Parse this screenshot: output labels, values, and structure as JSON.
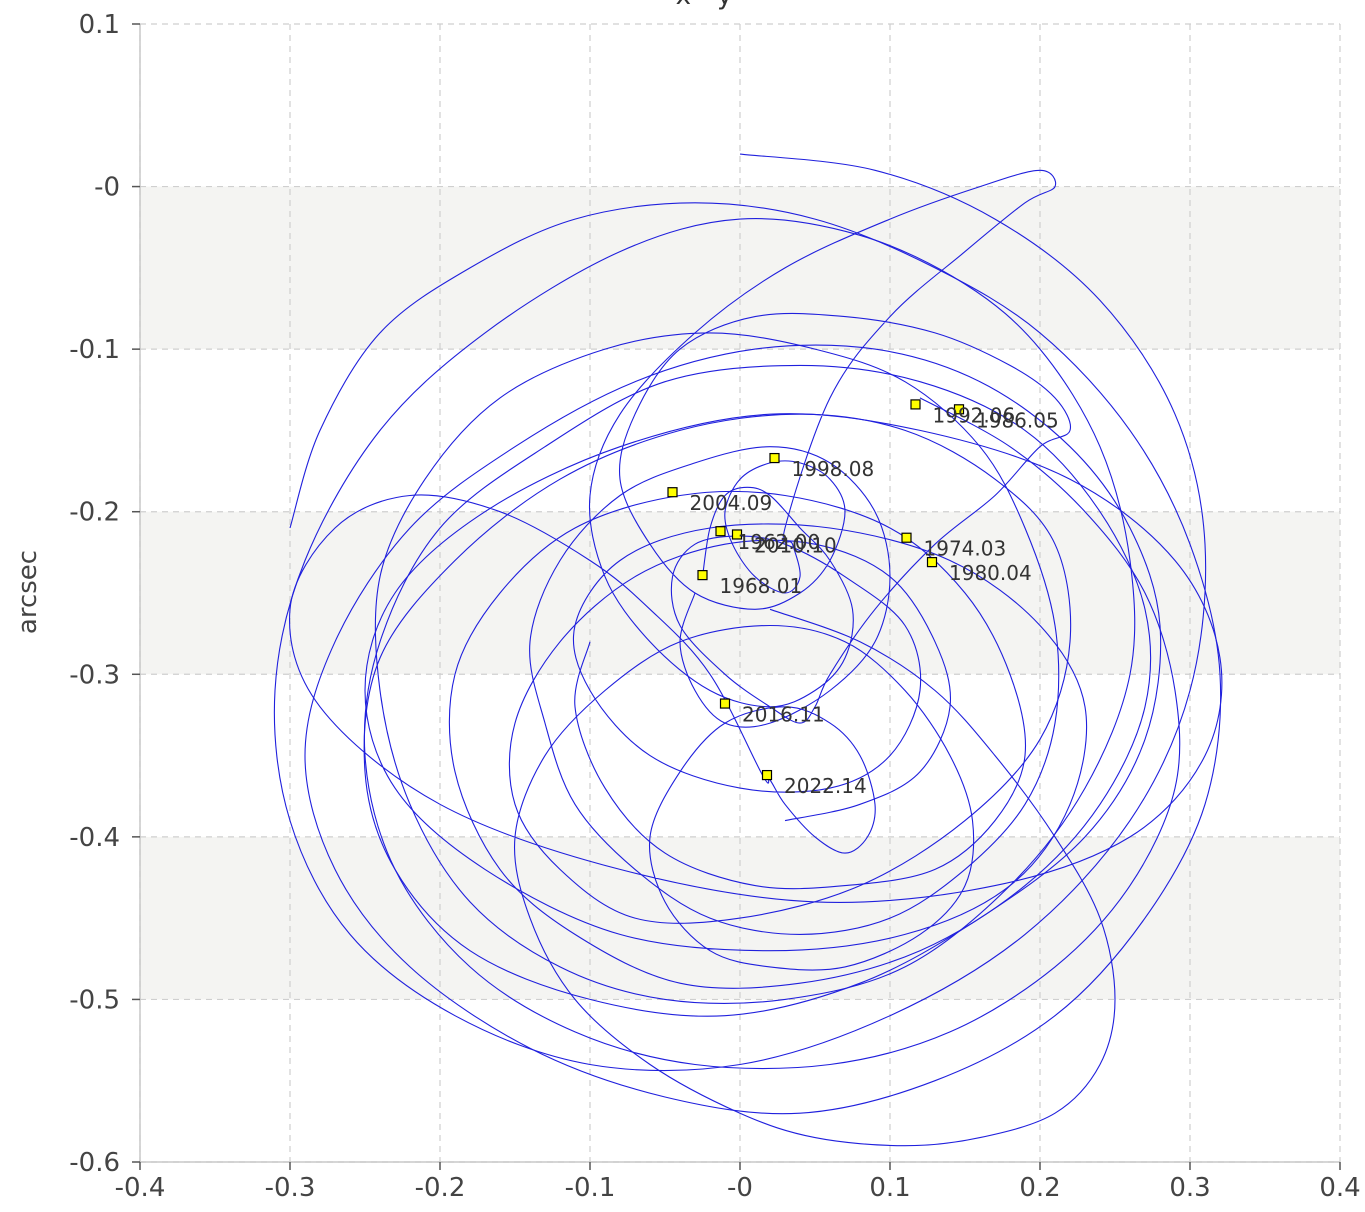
{
  "chart_data": {
    "type": "line",
    "title": "x - y",
    "xlabel": "",
    "ylabel": "arcsec",
    "xlim": [
      -0.4,
      0.4
    ],
    "ylim": [
      -0.6,
      0.1
    ],
    "x_ticks": [
      "-0.4",
      "-0.3",
      "-0.2",
      "-0.1",
      "-0",
      "0.1",
      "0.2",
      "0.3",
      "0.4"
    ],
    "y_ticks": [
      "0.1",
      "-0",
      "-0.1",
      "-0.2",
      "-0.3",
      "-0.4",
      "-0.5",
      "-0.6"
    ],
    "grid": true,
    "band_color": "#f4f4f2",
    "series": [
      {
        "color": "#2020dd",
        "x": [
          0.02,
          0.08,
          0.13,
          0.17,
          0.21,
          0.24,
          0.25,
          0.24,
          0.21,
          0.16,
          0.11,
          0.05,
          0.0,
          -0.06,
          -0.11,
          -0.14,
          -0.15,
          -0.13,
          -0.09,
          -0.04,
          0.02,
          0.07,
          0.11,
          0.14,
          0.155,
          0.15,
          0.12,
          0.07,
          0.02,
          -0.02,
          -0.05,
          -0.06,
          -0.04,
          -0.01,
          0.03,
          0.06,
          0.08,
          0.09,
          0.085,
          0.07,
          0.05,
          0.03,
          0.02,
          0.015,
          -0.02,
          -0.06,
          -0.1,
          -0.16,
          -0.22,
          -0.27,
          -0.3,
          -0.28,
          -0.2,
          -0.08,
          0.05,
          0.17,
          0.26,
          0.31,
          0.32,
          0.29,
          0.22,
          0.12,
          0.02,
          -0.08,
          -0.17,
          -0.23,
          -0.25,
          -0.23,
          -0.17,
          -0.08,
          0.02,
          0.11,
          0.18,
          0.22,
          0.23,
          0.2,
          0.14,
          0.06,
          -0.02,
          -0.08,
          -0.11,
          -0.1,
          -0.06,
          0.0,
          0.06,
          0.1,
          0.12,
          0.11,
          0.07,
          0.03,
          0.0,
          -0.03,
          -0.045,
          -0.04,
          -0.01,
          0.02,
          0.04,
          0.05,
          0.06,
          0.09,
          0.13,
          0.17,
          0.2,
          0.22,
          0.21,
          0.18,
          0.13,
          0.07,
          0.01,
          -0.04,
          -0.07,
          -0.08,
          -0.06,
          -0.03,
          0.01,
          0.04,
          0.06,
          0.07,
          0.06,
          0.04,
          0.02,
          0.0,
          -0.01,
          -0.005,
          0.01,
          0.03,
          0.04,
          0.035,
          0.03,
          0.06,
          0.1,
          0.15,
          0.19,
          0.21,
          0.2,
          0.16,
          0.1,
          0.03,
          -0.03,
          -0.08,
          -0.1,
          -0.09,
          -0.06,
          -0.02,
          0.02,
          0.05,
          0.07,
          0.075,
          0.06,
          0.04,
          0.02,
          0.005,
          -0.01,
          -0.02,
          -0.025
        ],
        "y": [
          -0.26,
          -0.28,
          -0.31,
          -0.35,
          -0.4,
          -0.45,
          -0.5,
          -0.54,
          -0.57,
          -0.585,
          -0.59,
          -0.585,
          -0.57,
          -0.54,
          -0.5,
          -0.45,
          -0.4,
          -0.35,
          -0.31,
          -0.28,
          -0.27,
          -0.28,
          -0.31,
          -0.35,
          -0.39,
          -0.43,
          -0.46,
          -0.48,
          -0.48,
          -0.47,
          -0.44,
          -0.4,
          -0.36,
          -0.33,
          -0.32,
          -0.33,
          -0.35,
          -0.38,
          -0.4,
          -0.41,
          -0.4,
          -0.38,
          -0.365,
          -0.362,
          -0.3,
          -0.26,
          -0.23,
          -0.2,
          -0.19,
          -0.21,
          -0.26,
          -0.32,
          -0.38,
          -0.42,
          -0.44,
          -0.43,
          -0.4,
          -0.35,
          -0.29,
          -0.23,
          -0.18,
          -0.15,
          -0.14,
          -0.16,
          -0.2,
          -0.25,
          -0.31,
          -0.37,
          -0.42,
          -0.46,
          -0.47,
          -0.46,
          -0.43,
          -0.38,
          -0.32,
          -0.27,
          -0.23,
          -0.21,
          -0.21,
          -0.23,
          -0.27,
          -0.31,
          -0.35,
          -0.37,
          -0.37,
          -0.35,
          -0.31,
          -0.27,
          -0.24,
          -0.22,
          -0.215,
          -0.22,
          -0.24,
          -0.27,
          -0.3,
          -0.32,
          -0.33,
          -0.32,
          -0.3,
          -0.26,
          -0.22,
          -0.19,
          -0.16,
          -0.15,
          -0.13,
          -0.11,
          -0.09,
          -0.08,
          -0.08,
          -0.1,
          -0.14,
          -0.18,
          -0.22,
          -0.25,
          -0.26,
          -0.25,
          -0.23,
          -0.2,
          -0.18,
          -0.17,
          -0.17,
          -0.18,
          -0.2,
          -0.22,
          -0.24,
          -0.25,
          -0.24,
          -0.22,
          -0.21,
          -0.13,
          -0.08,
          -0.04,
          -0.01,
          0.0,
          0.01,
          0.0,
          -0.02,
          -0.05,
          -0.09,
          -0.14,
          -0.19,
          -0.24,
          -0.28,
          -0.31,
          -0.32,
          -0.31,
          -0.29,
          -0.26,
          -0.23,
          -0.21,
          -0.19,
          -0.185,
          -0.19,
          -0.21,
          -0.24
        ]
      },
      {
        "color": "#2020dd",
        "x": [
          0.0,
          0.09,
          0.17,
          0.24,
          0.29,
          0.31,
          0.3,
          0.26,
          0.19,
          0.1,
          0.0,
          -0.1,
          -0.19,
          -0.26,
          -0.3,
          -0.31,
          -0.29,
          -0.24,
          -0.17,
          -0.08,
          0.0,
          0.08,
          0.15,
          0.2,
          0.24,
          0.26,
          0.26,
          0.23,
          0.18,
          0.11,
          0.03,
          -0.05,
          -0.12,
          -0.18,
          -0.22,
          -0.24,
          -0.24,
          -0.21,
          -0.16,
          -0.09,
          -0.02,
          0.05,
          0.11,
          0.16,
          0.19,
          0.21,
          0.21,
          0.19,
          0.15,
          0.1,
          0.04,
          -0.02,
          -0.07,
          -0.11,
          -0.13,
          -0.14,
          -0.12,
          -0.08,
          -0.03,
          0.02,
          0.06,
          0.09,
          0.1,
          0.09,
          0.06,
          0.02,
          -0.01,
          -0.03,
          -0.04,
          -0.03
        ],
        "y": [
          0.02,
          0.01,
          -0.02,
          -0.07,
          -0.14,
          -0.22,
          -0.31,
          -0.39,
          -0.46,
          -0.51,
          -0.54,
          -0.54,
          -0.51,
          -0.46,
          -0.39,
          -0.31,
          -0.23,
          -0.15,
          -0.09,
          -0.04,
          -0.02,
          -0.03,
          -0.06,
          -0.1,
          -0.16,
          -0.23,
          -0.3,
          -0.37,
          -0.43,
          -0.48,
          -0.5,
          -0.5,
          -0.48,
          -0.44,
          -0.38,
          -0.31,
          -0.24,
          -0.18,
          -0.13,
          -0.1,
          -0.09,
          -0.1,
          -0.12,
          -0.16,
          -0.21,
          -0.27,
          -0.33,
          -0.38,
          -0.42,
          -0.45,
          -0.46,
          -0.45,
          -0.42,
          -0.38,
          -0.33,
          -0.28,
          -0.23,
          -0.19,
          -0.17,
          -0.16,
          -0.17,
          -0.2,
          -0.24,
          -0.28,
          -0.31,
          -0.33,
          -0.33,
          -0.31,
          -0.28,
          -0.25
        ]
      },
      {
        "color": "#2020dd",
        "x": [
          -0.3,
          -0.28,
          -0.24,
          -0.18,
          -0.11,
          -0.03,
          0.05,
          0.13,
          0.2,
          0.26,
          0.3,
          0.32,
          0.31,
          0.27,
          0.21,
          0.13,
          0.04,
          -0.05,
          -0.14,
          -0.22,
          -0.27,
          -0.29,
          -0.27,
          -0.22,
          -0.15,
          -0.07,
          0.01,
          0.09,
          0.16,
          0.22,
          0.26,
          0.28,
          0.27,
          0.23,
          0.16,
          0.08,
          -0.01,
          -0.1,
          -0.18,
          -0.23,
          -0.25,
          -0.24,
          -0.19,
          -0.12,
          -0.04,
          0.04,
          0.11,
          0.17,
          0.21,
          0.22,
          0.2,
          0.15,
          0.08,
          0.0,
          -0.07,
          -0.12,
          -0.15,
          -0.15,
          -0.12,
          -0.07,
          -0.01,
          0.05,
          0.1,
          0.13,
          0.14,
          0.12,
          0.08,
          0.03
        ],
        "y": [
          -0.21,
          -0.15,
          -0.09,
          -0.05,
          -0.02,
          -0.01,
          -0.02,
          -0.05,
          -0.09,
          -0.15,
          -0.22,
          -0.3,
          -0.38,
          -0.45,
          -0.51,
          -0.55,
          -0.57,
          -0.56,
          -0.53,
          -0.48,
          -0.42,
          -0.35,
          -0.28,
          -0.21,
          -0.16,
          -0.12,
          -0.1,
          -0.1,
          -0.12,
          -0.16,
          -0.21,
          -0.27,
          -0.34,
          -0.4,
          -0.45,
          -0.49,
          -0.51,
          -0.5,
          -0.47,
          -0.42,
          -0.36,
          -0.29,
          -0.23,
          -0.18,
          -0.15,
          -0.14,
          -0.15,
          -0.18,
          -0.22,
          -0.28,
          -0.34,
          -0.39,
          -0.43,
          -0.45,
          -0.45,
          -0.42,
          -0.38,
          -0.33,
          -0.28,
          -0.24,
          -0.22,
          -0.22,
          -0.24,
          -0.28,
          -0.32,
          -0.36,
          -0.38,
          -0.39
        ]
      },
      {
        "color": "#2020dd",
        "x": [
          0.12,
          0.18,
          0.23,
          0.27,
          0.29,
          0.29,
          0.26,
          0.21,
          0.14,
          0.06,
          -0.03,
          -0.11,
          -0.18,
          -0.23,
          -0.25,
          -0.24,
          -0.2,
          -0.13,
          -0.05,
          0.04,
          0.12,
          0.19,
          0.24,
          0.27,
          0.27,
          0.24,
          0.19,
          0.12,
          0.04,
          -0.04,
          -0.11,
          -0.16,
          -0.19,
          -0.19,
          -0.16,
          -0.11,
          -0.04,
          0.03,
          0.1,
          0.15,
          0.18,
          0.19,
          0.17,
          0.13,
          0.07,
          0.01,
          -0.05,
          -0.09,
          -0.11,
          -0.1
        ],
        "y": [
          -0.13,
          -0.16,
          -0.2,
          -0.25,
          -0.31,
          -0.37,
          -0.43,
          -0.48,
          -0.52,
          -0.54,
          -0.54,
          -0.52,
          -0.48,
          -0.42,
          -0.35,
          -0.28,
          -0.21,
          -0.16,
          -0.12,
          -0.11,
          -0.12,
          -0.15,
          -0.2,
          -0.26,
          -0.32,
          -0.38,
          -0.43,
          -0.47,
          -0.49,
          -0.49,
          -0.46,
          -0.42,
          -0.36,
          -0.3,
          -0.25,
          -0.21,
          -0.19,
          -0.19,
          -0.21,
          -0.25,
          -0.3,
          -0.35,
          -0.39,
          -0.42,
          -0.43,
          -0.43,
          -0.41,
          -0.37,
          -0.32,
          -0.28
        ]
      }
    ],
    "markers": [
      {
        "label": "1968.01",
        "x": -0.025,
        "y": -0.239,
        "color": "#ffff00"
      },
      {
        "label": "1974.03",
        "x": 0.111,
        "y": -0.216,
        "color": "#ffff00"
      },
      {
        "label": "1980.04",
        "x": 0.128,
        "y": -0.231,
        "color": "#ffff00"
      },
      {
        "label": "1986.05",
        "x": 0.146,
        "y": -0.137,
        "color": "#ffff00"
      },
      {
        "label": "1992.06",
        "x": 0.117,
        "y": -0.134,
        "color": "#ffff00"
      },
      {
        "label": "1998.08",
        "x": 0.023,
        "y": -0.167,
        "color": "#ffff00"
      },
      {
        "label": "2004.09",
        "x": -0.045,
        "y": -0.188,
        "color": "#ffff00"
      },
      {
        "label": "2010.10",
        "x": -0.002,
        "y": -0.214,
        "color": "#ffff00"
      },
      {
        "label": "1962.00",
        "x": -0.013,
        "y": -0.212,
        "color": "#ffff00"
      },
      {
        "label": "2016.11",
        "x": -0.01,
        "y": -0.318,
        "color": "#ffff00"
      },
      {
        "label": "2022.14",
        "x": 0.018,
        "y": -0.362,
        "color": "#ffff00"
      }
    ]
  }
}
